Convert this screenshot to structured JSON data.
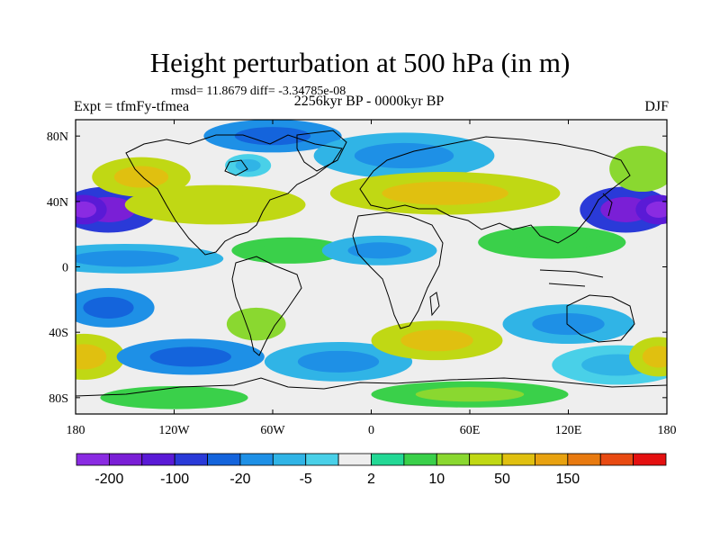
{
  "title": "Height perturbation at 500 hPa (in m)",
  "stats": "rmsd= 11.8679 diff= -3.34785e-08",
  "subtitle": "2256kyr BP - 0000kyr BP",
  "experiment": "Expt = tfmFy-tfmea",
  "season": "DJF",
  "chart_data": {
    "type": "heatmap",
    "projection": "cylindrical-equidistant",
    "lon_range": [
      -180,
      180
    ],
    "lat_range": [
      -90,
      90
    ],
    "x_ticks": [
      {
        "value": -180,
        "label": "180"
      },
      {
        "value": -120,
        "label": "120W"
      },
      {
        "value": -60,
        "label": "60W"
      },
      {
        "value": 0,
        "label": "0"
      },
      {
        "value": 60,
        "label": "60E"
      },
      {
        "value": 120,
        "label": "120E"
      },
      {
        "value": 180,
        "label": "180"
      }
    ],
    "y_ticks": [
      {
        "value": 80,
        "label": "80N"
      },
      {
        "value": 40,
        "label": "40N"
      },
      {
        "value": 0,
        "label": "0"
      },
      {
        "value": -40,
        "label": "40S"
      },
      {
        "value": -80,
        "label": "80S"
      }
    ],
    "colorbar": {
      "colors": [
        "#8a2be2",
        "#7a1fd6",
        "#5a1ad6",
        "#2a3ad8",
        "#1464dc",
        "#1e90e6",
        "#30b4e6",
        "#49d0e8",
        "#eeeeee",
        "#23d895",
        "#3ad04a",
        "#8ad830",
        "#c0d814",
        "#e0c010",
        "#e8a210",
        "#e87a10",
        "#e84a12",
        "#e41010"
      ],
      "labels": [
        {
          "boundary": 1,
          "text": "-200"
        },
        {
          "boundary": 3,
          "text": "-100"
        },
        {
          "boundary": 5,
          "text": "-20"
        },
        {
          "boundary": 7,
          "text": "-5"
        },
        {
          "boundary": 9,
          "text": "2"
        },
        {
          "boundary": 11,
          "text": "10"
        },
        {
          "boundary": 13,
          "text": "50"
        },
        {
          "boundary": 15,
          "text": "150"
        }
      ]
    },
    "field_blobs": [
      {
        "lon": -160,
        "lat": 35,
        "rx": 30,
        "ry": 14,
        "level": -100
      },
      {
        "lon": -175,
        "lat": 35,
        "rx": 14,
        "ry": 9,
        "level": -150
      },
      {
        "lon": -60,
        "lat": 80,
        "rx": 42,
        "ry": 10,
        "level": -20
      },
      {
        "lon": -75,
        "lat": 62,
        "rx": 14,
        "ry": 7,
        "level": -5
      },
      {
        "lon": -140,
        "lat": 55,
        "rx": 30,
        "ry": 12,
        "level": 30
      },
      {
        "lon": -95,
        "lat": 38,
        "rx": 55,
        "ry": 12,
        "level": 20
      },
      {
        "lon": 20,
        "lat": 68,
        "rx": 55,
        "ry": 14,
        "level": -10
      },
      {
        "lon": 45,
        "lat": 45,
        "rx": 70,
        "ry": 13,
        "level": 30
      },
      {
        "lon": 155,
        "lat": 35,
        "rx": 28,
        "ry": 14,
        "level": -100
      },
      {
        "lon": 175,
        "lat": 35,
        "rx": 14,
        "ry": 9,
        "level": -150
      },
      {
        "lon": 165,
        "lat": 60,
        "rx": 20,
        "ry": 14,
        "level": 10
      },
      {
        "lon": 110,
        "lat": 15,
        "rx": 45,
        "ry": 10,
        "level": 5
      },
      {
        "lon": -150,
        "lat": 5,
        "rx": 60,
        "ry": 9,
        "level": -10
      },
      {
        "lon": -50,
        "lat": 10,
        "rx": 35,
        "ry": 8,
        "level": 5
      },
      {
        "lon": 5,
        "lat": 10,
        "rx": 35,
        "ry": 9,
        "level": -10
      },
      {
        "lon": -160,
        "lat": -25,
        "rx": 28,
        "ry": 12,
        "level": -20
      },
      {
        "lon": -175,
        "lat": -55,
        "rx": 25,
        "ry": 14,
        "level": 30
      },
      {
        "lon": -110,
        "lat": -55,
        "rx": 45,
        "ry": 11,
        "level": -20
      },
      {
        "lon": -70,
        "lat": -35,
        "rx": 18,
        "ry": 10,
        "level": 10
      },
      {
        "lon": -20,
        "lat": -58,
        "rx": 45,
        "ry": 12,
        "level": -10
      },
      {
        "lon": 40,
        "lat": -45,
        "rx": 40,
        "ry": 12,
        "level": 30
      },
      {
        "lon": 120,
        "lat": -35,
        "rx": 40,
        "ry": 12,
        "level": -10
      },
      {
        "lon": 150,
        "lat": -60,
        "rx": 40,
        "ry": 12,
        "level": -5
      },
      {
        "lon": 175,
        "lat": -55,
        "rx": 18,
        "ry": 12,
        "level": 30
      },
      {
        "lon": -120,
        "lat": -80,
        "rx": 45,
        "ry": 7,
        "level": 5
      },
      {
        "lon": 60,
        "lat": -78,
        "rx": 60,
        "ry": 8,
        "level": 8
      }
    ]
  }
}
